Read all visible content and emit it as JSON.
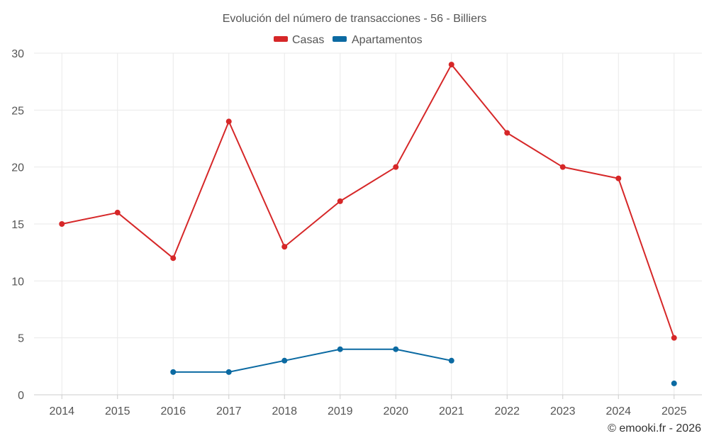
{
  "chart_data": {
    "type": "line",
    "title": "Evolución del número de transacciones - 56 - Billiers",
    "categories": [
      "2014",
      "2015",
      "2016",
      "2017",
      "2018",
      "2019",
      "2020",
      "2021",
      "2022",
      "2023",
      "2024",
      "2025"
    ],
    "y_ticks": [
      "0",
      "5",
      "10",
      "15",
      "20",
      "25",
      "30"
    ],
    "ylim": [
      0,
      30
    ],
    "grid": true,
    "legend_position": "top-center",
    "series": [
      {
        "name": "Casas",
        "color": "#d62728",
        "values": [
          15,
          16,
          12,
          24,
          13,
          17,
          20,
          29,
          23,
          20,
          19,
          5
        ]
      },
      {
        "name": "Apartamentos",
        "color": "#0b6aa2",
        "values": [
          null,
          null,
          2,
          2,
          3,
          4,
          4,
          3,
          null,
          null,
          null,
          1
        ]
      }
    ],
    "credit": "© emooki.fr - 2026"
  }
}
